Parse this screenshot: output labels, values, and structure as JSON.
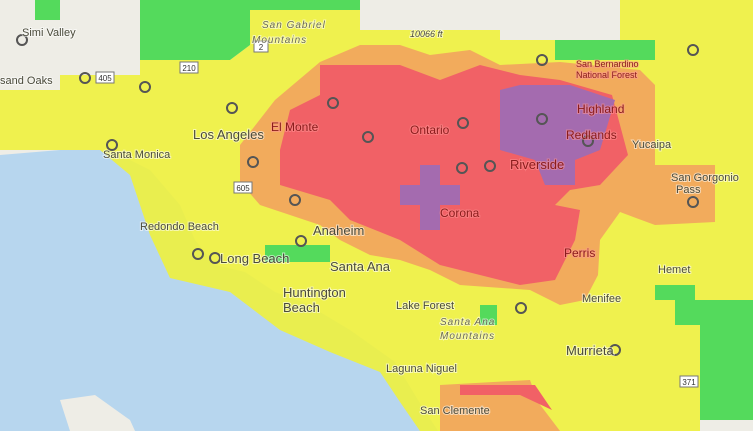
{
  "labels": [
    "Simi Valley",
    "sand Oaks",
    "San Gabriel",
    "Mountains",
    "10066 ft",
    "San Bernardino",
    "National Forest",
    "Los Angeles",
    "El Monte",
    "Ontario",
    "Highland",
    "Redlands",
    "Yucaipa",
    "Santa Monica",
    "Riverside",
    "San Gorgonio",
    "Pass",
    "Corona",
    "Anaheim",
    "Redondo Beach",
    "Long Beach",
    "Perris",
    "Hemet",
    "Santa Ana",
    "Huntington",
    "Beach",
    "Lake Forest",
    "Menifee",
    "Santa Ana",
    "Mountains",
    "Murrieta",
    "Laguna Niguel",
    "San Clemente"
  ],
  "shields": [
    "2",
    "405",
    "210",
    "605",
    "371"
  ]
}
